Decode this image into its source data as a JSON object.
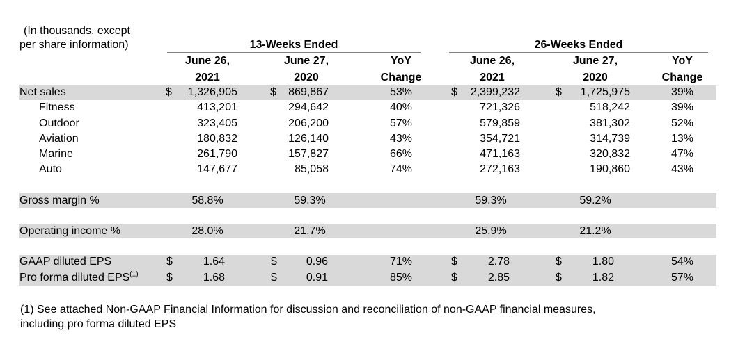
{
  "units_note": [
    "(In thousands, except",
    "per share information)"
  ],
  "groups": [
    "13-Weeks Ended",
    "26-Weeks Ended"
  ],
  "col_headers": [
    [
      "June 26,",
      "2021"
    ],
    [
      "June 27,",
      "2020"
    ],
    [
      "YoY",
      "Change"
    ],
    [
      "June 26,",
      "2021"
    ],
    [
      "June 27,",
      "2020"
    ],
    [
      "YoY",
      "Change"
    ]
  ],
  "currency_symbol": "$",
  "rows": {
    "net_sales": {
      "label": "Net sales",
      "values": [
        "1,326,905",
        "869,867",
        "53%",
        "2,399,232",
        "1,725,975",
        "39%"
      ]
    },
    "fitness": {
      "label": "Fitness",
      "values": [
        "413,201",
        "294,642",
        "40%",
        "721,326",
        "518,242",
        "39%"
      ]
    },
    "outdoor": {
      "label": "Outdoor",
      "values": [
        "323,405",
        "206,200",
        "57%",
        "579,859",
        "381,302",
        "52%"
      ]
    },
    "aviation": {
      "label": "Aviation",
      "values": [
        "180,832",
        "126,140",
        "43%",
        "354,721",
        "314,739",
        "13%"
      ]
    },
    "marine": {
      "label": "Marine",
      "values": [
        "261,790",
        "157,827",
        "66%",
        "471,163",
        "320,832",
        "47%"
      ]
    },
    "auto": {
      "label": "Auto",
      "values": [
        "147,677",
        "85,058",
        "74%",
        "272,163",
        "190,860",
        "43%"
      ]
    },
    "gross_margin": {
      "label": "Gross margin %",
      "values": [
        "58.8%",
        "59.3%",
        "",
        "59.3%",
        "59.2%",
        ""
      ]
    },
    "operating_income": {
      "label": "Operating income %",
      "values": [
        "28.0%",
        "21.7%",
        "",
        "25.9%",
        "21.2%",
        ""
      ]
    },
    "gaap_eps": {
      "label": "GAAP diluted EPS",
      "values": [
        "1.64",
        "0.96",
        "71%",
        "2.78",
        "1.80",
        "54%"
      ]
    },
    "pro_forma_eps": {
      "label": "Pro forma diluted EPS",
      "footnote_mark": "(1)",
      "values": [
        "1.68",
        "0.91",
        "85%",
        "2.85",
        "1.82",
        "57%"
      ]
    }
  },
  "footnote": [
    "(1) See attached Non-GAAP Financial Information for discussion and reconciliation of non-GAAP financial measures,",
    "including pro forma diluted EPS"
  ]
}
